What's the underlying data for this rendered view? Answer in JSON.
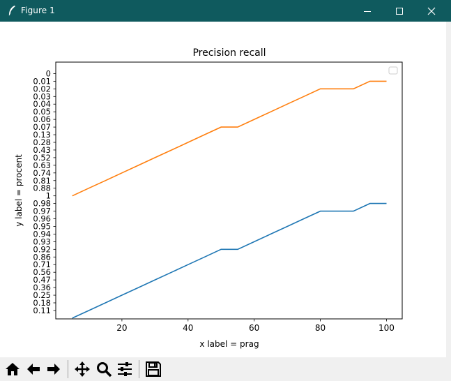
{
  "window": {
    "title": "Figure 1"
  },
  "titlebar_icons": [
    "feather-icon",
    "minimize-icon",
    "maximize-icon",
    "close-icon"
  ],
  "toolbar": {
    "buttons": [
      {
        "name": "home-button",
        "icon": "home-icon"
      },
      {
        "name": "back-button",
        "icon": "arrow-left-icon"
      },
      {
        "name": "forward-button",
        "icon": "arrow-right-icon"
      },
      {
        "name": "pan-button",
        "icon": "move-icon"
      },
      {
        "name": "zoom-button",
        "icon": "magnifier-icon"
      },
      {
        "name": "configure-subplots-button",
        "icon": "sliders-icon"
      },
      {
        "name": "save-button",
        "icon": "floppy-disk-icon"
      }
    ]
  },
  "colors": {
    "titlebar": "#0f5a5e",
    "series_blue": "#1f77b4",
    "series_orange": "#ff7f0e"
  },
  "chart_data": {
    "type": "line",
    "title": "Precision recall",
    "xlabel": "x label = prag",
    "ylabel": "y label = procent",
    "xlim": [
      0,
      104.75
    ],
    "ylim": [
      -0.1,
      33.5
    ],
    "x_ticks": [
      20,
      40,
      60,
      80,
      100
    ],
    "y_tick_labels": [
      "0.11",
      "0.18",
      "0.25",
      "0.36",
      "0.47",
      "0.56",
      "0.71",
      "0.86",
      "0.92",
      "0.93",
      "0.94",
      "0.95",
      "0.96",
      "0.97",
      "0.98",
      "1",
      "0.88",
      "0.81",
      "0.74",
      "0.63",
      "0.52",
      "0.43",
      "0.28",
      "0.13",
      "0.07",
      "0.06",
      "0.05",
      "0.04",
      "0.03",
      "0.02",
      "0.01",
      "0"
    ],
    "y_tick_positions": [
      1,
      2,
      3,
      4,
      5,
      6,
      7,
      8,
      9,
      10,
      11,
      12,
      13,
      14,
      15,
      16,
      17,
      18,
      19,
      20,
      21,
      22,
      23,
      24,
      25,
      26,
      27,
      28,
      29,
      30,
      31,
      32
    ],
    "grid": false,
    "legend": {
      "placement": "top-right",
      "entries": []
    },
    "series": [
      {
        "color": "#1f77b4",
        "x": [
          5,
          10,
          15,
          20,
          25,
          30,
          35,
          40,
          45,
          50,
          55,
          60,
          65,
          70,
          75,
          80,
          85,
          90,
          95,
          100
        ],
        "y": [
          0,
          1,
          2,
          3,
          4,
          5,
          6,
          7,
          8,
          9,
          9,
          10,
          11,
          12,
          13,
          14,
          14,
          14,
          15,
          15
        ]
      },
      {
        "color": "#ff7f0e",
        "x": [
          5,
          10,
          15,
          20,
          25,
          30,
          35,
          40,
          45,
          50,
          55,
          60,
          65,
          70,
          75,
          80,
          85,
          90,
          95,
          100
        ],
        "y": [
          16,
          17,
          18,
          19,
          20,
          21,
          22,
          23,
          24,
          25,
          25,
          26,
          27,
          28,
          29,
          30,
          30,
          30,
          31,
          31
        ]
      }
    ]
  }
}
